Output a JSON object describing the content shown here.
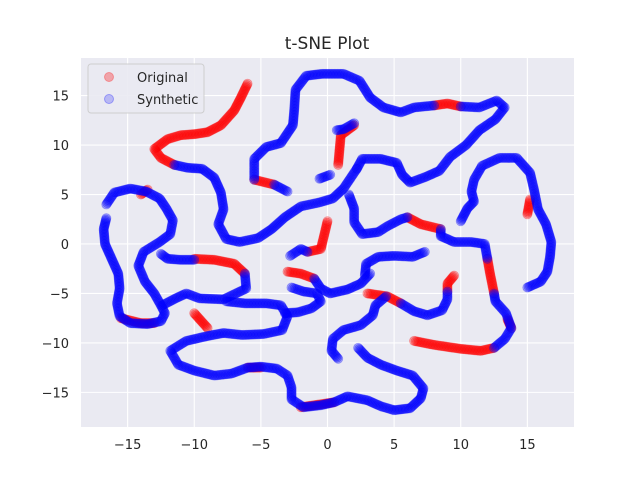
{
  "chart_data": {
    "type": "scatter",
    "title": "t-SNE Plot",
    "xlabel": "",
    "ylabel": "",
    "xlim": [
      -18.5,
      18.5
    ],
    "ylim": [
      -18.5,
      18.8
    ],
    "xticks": [
      -15,
      -10,
      -5,
      0,
      5,
      10,
      15
    ],
    "yticks": [
      -15,
      -10,
      -5,
      0,
      5,
      10,
      15
    ],
    "grid": true,
    "legend_position": "top-left",
    "marker_alpha": 0.3,
    "series": [
      {
        "name": "Original",
        "color": "#ff0000",
        "paths": [
          [
            [
              -6,
              16.2
            ],
            [
              -6.5,
              14.8
            ],
            [
              -7,
              13.5
            ],
            [
              -8,
              12
            ],
            [
              -9,
              11.3
            ],
            [
              -10,
              11.1
            ],
            [
              -11,
              11
            ],
            [
              -12,
              10.6
            ],
            [
              -13,
              9.6
            ],
            [
              -12.5,
              8.7
            ],
            [
              -11.5,
              8
            ]
          ],
          [
            [
              -10,
              -1.5
            ],
            [
              -8.5,
              -1.6
            ],
            [
              -7,
              -2
            ],
            [
              -6.2,
              -3
            ]
          ],
          [
            [
              -3,
              -2.8
            ],
            [
              -2,
              -3
            ],
            [
              -1,
              -3.5
            ]
          ],
          [
            [
              0,
              2.3
            ],
            [
              -0.5,
              -0.5
            ],
            [
              -1.5,
              -0.8
            ]
          ],
          [
            [
              0.8,
              8
            ],
            [
              1,
              11
            ],
            [
              2,
              12
            ]
          ],
          [
            [
              -5.5,
              6.5
            ],
            [
              -4,
              6
            ]
          ],
          [
            [
              6,
              2.7
            ],
            [
              7,
              2
            ],
            [
              8.5,
              1.5
            ]
          ],
          [
            [
              9,
              -4.8
            ],
            [
              9,
              -4
            ],
            [
              9.5,
              -3.2
            ]
          ],
          [
            [
              6.5,
              -9.8
            ],
            [
              8,
              -10.2
            ],
            [
              10,
              -10.6
            ],
            [
              11.5,
              -10.8
            ],
            [
              12.5,
              -10.5
            ]
          ],
          [
            [
              13.5,
              -7.6
            ],
            [
              13.8,
              -8.5
            ]
          ],
          [
            [
              3,
              -5
            ],
            [
              4.5,
              -5.3
            ],
            [
              5.5,
              -6
            ]
          ],
          [
            [
              12,
              -1.5
            ],
            [
              12.2,
              -3
            ],
            [
              12.5,
              -5
            ]
          ],
          [
            [
              -10,
              -7
            ],
            [
              -9,
              -8.5
            ]
          ],
          [
            [
              8,
              14
            ],
            [
              9,
              14.2
            ],
            [
              10,
              13.9
            ]
          ],
          [
            [
              0.5,
              -16
            ],
            [
              -1,
              -16.3
            ],
            [
              -2,
              -16.5
            ]
          ],
          [
            [
              -15.5,
              -7.5
            ],
            [
              -14,
              -8
            ],
            [
              -13,
              -8
            ]
          ],
          [
            [
              -14,
              5
            ],
            [
              -13.5,
              5.5
            ]
          ],
          [
            [
              -6,
              -12.5
            ],
            [
              -5,
              -12.5
            ]
          ],
          [
            [
              15,
              3
            ],
            [
              15.2,
              4.5
            ]
          ]
        ]
      },
      {
        "name": "Synthetic",
        "color": "#0000ff",
        "paths": [
          [
            [
              -16.6,
              2.6
            ],
            [
              -16.8,
              1.5
            ],
            [
              -16.7,
              0
            ],
            [
              -16.2,
              -1.5
            ],
            [
              -15.7,
              -3
            ],
            [
              -15.6,
              -4.5
            ],
            [
              -15.8,
              -6
            ],
            [
              -15.6,
              -7.3
            ],
            [
              -14.8,
              -8
            ],
            [
              -13.5,
              -8.1
            ],
            [
              -12.5,
              -7.8
            ],
            [
              -12.2,
              -7
            ],
            [
              -12.5,
              -6.2
            ],
            [
              -13,
              -5
            ],
            [
              -13.7,
              -3.8
            ],
            [
              -14.2,
              -2.2
            ],
            [
              -13.8,
              -0.8
            ],
            [
              -12.6,
              0.2
            ],
            [
              -11.8,
              1
            ],
            [
              -11.6,
              2.4
            ],
            [
              -12.1,
              3.6
            ],
            [
              -12.6,
              4.6
            ],
            [
              -13.6,
              5.3
            ],
            [
              -14.8,
              5.6
            ],
            [
              -16,
              5.2
            ],
            [
              -16.6,
              4
            ]
          ],
          [
            [
              -11.5,
              8
            ],
            [
              -10.5,
              7.7
            ],
            [
              -9.4,
              7.6
            ],
            [
              -8.5,
              6.7
            ],
            [
              -8,
              5.2
            ],
            [
              -7.8,
              3.5
            ],
            [
              -8.2,
              2
            ],
            [
              -7.6,
              0.5
            ],
            [
              -6.6,
              0.2
            ],
            [
              -5.2,
              0.6
            ],
            [
              -4.2,
              1.5
            ],
            [
              -3.2,
              2.7
            ],
            [
              -2,
              3.8
            ],
            [
              -0.6,
              4.2
            ],
            [
              0.4,
              4.6
            ],
            [
              1.2,
              5.6
            ],
            [
              1.8,
              6.8
            ],
            [
              2.2,
              7.6
            ]
          ],
          [
            [
              -12.5,
              -1
            ],
            [
              -12,
              -1.5
            ],
            [
              -11,
              -1.6
            ],
            [
              -10,
              -1.6
            ]
          ],
          [
            [
              -6.2,
              -3
            ],
            [
              -6.1,
              -4.5
            ],
            [
              -7.8,
              -5.6
            ],
            [
              -9.6,
              -5.5
            ],
            [
              -10.6,
              -5
            ],
            [
              -11.4,
              -5.5
            ],
            [
              -12.4,
              -6.2
            ]
          ],
          [
            [
              -7.6,
              -5.8
            ],
            [
              -6.2,
              -6
            ],
            [
              -4.6,
              -6
            ],
            [
              -3.5,
              -6.2
            ],
            [
              -3,
              -7.3
            ],
            [
              -3.4,
              -8.7
            ],
            [
              -4.8,
              -9.1
            ],
            [
              -6.4,
              -9.2
            ],
            [
              -7.8,
              -9
            ],
            [
              -9,
              -9.3
            ],
            [
              -10.6,
              -9.8
            ],
            [
              -11.8,
              -10.8
            ],
            [
              -11.2,
              -12.2
            ],
            [
              -10,
              -12.8
            ],
            [
              -8.5,
              -13.3
            ],
            [
              -7.2,
              -13.1
            ],
            [
              -6,
              -12.5
            ],
            [
              -5,
              -12.4
            ],
            [
              -3.8,
              -12.6
            ],
            [
              -3,
              -13.3
            ],
            [
              -2.7,
              -14.5
            ],
            [
              -2.7,
              -15.7
            ],
            [
              -1.8,
              -16.5
            ],
            [
              -0.5,
              -16.3
            ],
            [
              0.5,
              -16
            ],
            [
              1.5,
              -15.4
            ],
            [
              3,
              -15.8
            ],
            [
              4,
              -16.4
            ],
            [
              5,
              -16.8
            ],
            [
              6.2,
              -16.6
            ],
            [
              7,
              -15.6
            ],
            [
              7.2,
              -14.6
            ],
            [
              6.4,
              -13.3
            ],
            [
              5.2,
              -12.8
            ],
            [
              4,
              -12.2
            ],
            [
              3,
              -11.5
            ],
            [
              2.3,
              -10.5
            ]
          ],
          [
            [
              -3.2,
              -7
            ],
            [
              -2.2,
              -6.9
            ],
            [
              -1.2,
              -6.5
            ],
            [
              -0.5,
              -5.8
            ],
            [
              -0.8,
              -5
            ],
            [
              -1.8,
              -4.8
            ],
            [
              -2.7,
              -4.4
            ]
          ],
          [
            [
              -2.8,
              -1.2
            ],
            [
              -2,
              -0.5
            ],
            [
              -1.5,
              -0.8
            ]
          ],
          [
            [
              -1,
              -3.5
            ],
            [
              -0.5,
              -4.5
            ],
            [
              0.2,
              -5
            ],
            [
              1.5,
              -4.6
            ],
            [
              2.5,
              -4
            ],
            [
              3.2,
              -3
            ]
          ],
          [
            [
              2.8,
              -3.2
            ],
            [
              2.9,
              -2
            ],
            [
              3.8,
              -1.3
            ],
            [
              5,
              -1.2
            ],
            [
              6.4,
              -1.3
            ],
            [
              7.3,
              -0.8
            ]
          ],
          [
            [
              0.8,
              -11.6
            ],
            [
              0.3,
              -10.8
            ],
            [
              0.4,
              -9.6
            ],
            [
              1.2,
              -8.7
            ],
            [
              2.5,
              -8.2
            ],
            [
              3.4,
              -7.2
            ],
            [
              3.6,
              -6.2
            ],
            [
              4.4,
              -5.3
            ]
          ],
          [
            [
              5.5,
              -6
            ],
            [
              6.5,
              -6.8
            ],
            [
              7.5,
              -7.2
            ],
            [
              8.6,
              -6.7
            ],
            [
              9,
              -5.6
            ],
            [
              9,
              -4.8
            ]
          ],
          [
            [
              12.5,
              -10.5
            ],
            [
              13.3,
              -9.6
            ],
            [
              13.8,
              -8.5
            ],
            [
              13.4,
              -7
            ],
            [
              12.6,
              -5.8
            ],
            [
              12.5,
              -5
            ]
          ],
          [
            [
              12,
              -1.5
            ],
            [
              11.8,
              0
            ],
            [
              10.8,
              0.2
            ],
            [
              9.5,
              0.2
            ],
            [
              8.5,
              0.8
            ],
            [
              8.5,
              1.5
            ]
          ],
          [
            [
              6,
              2.7
            ],
            [
              5.5,
              2.5
            ],
            [
              4.5,
              1.8
            ],
            [
              3.8,
              1.2
            ],
            [
              2.6,
              1
            ],
            [
              2,
              2.2
            ],
            [
              2,
              3.6
            ],
            [
              1.6,
              5
            ]
          ],
          [
            [
              2.2,
              7.6
            ],
            [
              2.6,
              8.6
            ],
            [
              4,
              8.6
            ],
            [
              5.2,
              8.2
            ],
            [
              5.6,
              7
            ],
            [
              6.2,
              6.2
            ],
            [
              7.4,
              6.8
            ],
            [
              8.4,
              7.4
            ],
            [
              9.2,
              8.8
            ],
            [
              10.4,
              10
            ],
            [
              11.4,
              11.5
            ],
            [
              12.6,
              12.6
            ],
            [
              13.3,
              13.8
            ],
            [
              12.7,
              14.5
            ],
            [
              11.4,
              13.8
            ],
            [
              10,
              13.9
            ]
          ],
          [
            [
              8,
              14
            ],
            [
              6.5,
              13.8
            ],
            [
              5.5,
              13.3
            ],
            [
              4.2,
              13.8
            ],
            [
              3.2,
              14.8
            ],
            [
              2.4,
              16.5
            ],
            [
              1.2,
              17.2
            ],
            [
              -0.4,
              17.2
            ],
            [
              -1.6,
              17
            ],
            [
              -2.4,
              15.6
            ],
            [
              -2.5,
              13.5
            ],
            [
              -2.6,
              12
            ],
            [
              -3.5,
              10.2
            ],
            [
              -4.6,
              9.8
            ],
            [
              -5.5,
              8.6
            ],
            [
              -5.5,
              6.5
            ]
          ],
          [
            [
              -4,
              6
            ],
            [
              -3,
              5.3
            ]
          ],
          [
            [
              10,
              2.3
            ],
            [
              10.5,
              3.6
            ],
            [
              11,
              4.3
            ],
            [
              10.8,
              5.3
            ],
            [
              11,
              6.5
            ],
            [
              11.6,
              7.9
            ],
            [
              12.9,
              8.7
            ],
            [
              14.2,
              8.7
            ],
            [
              15.2,
              7.2
            ],
            [
              15.5,
              5.5
            ],
            [
              15.8,
              3.5
            ],
            [
              16.4,
              2
            ],
            [
              16.8,
              0.2
            ],
            [
              16.7,
              -1.3
            ],
            [
              16.5,
              -2.8
            ],
            [
              16,
              -3.8
            ],
            [
              15,
              -4.4
            ]
          ],
          [
            [
              0.2,
              7
            ],
            [
              -0.6,
              6.6
            ]
          ],
          [
            [
              0.7,
              11.5
            ],
            [
              1.2,
              11.6
            ],
            [
              2,
              12.2
            ]
          ]
        ]
      }
    ]
  }
}
